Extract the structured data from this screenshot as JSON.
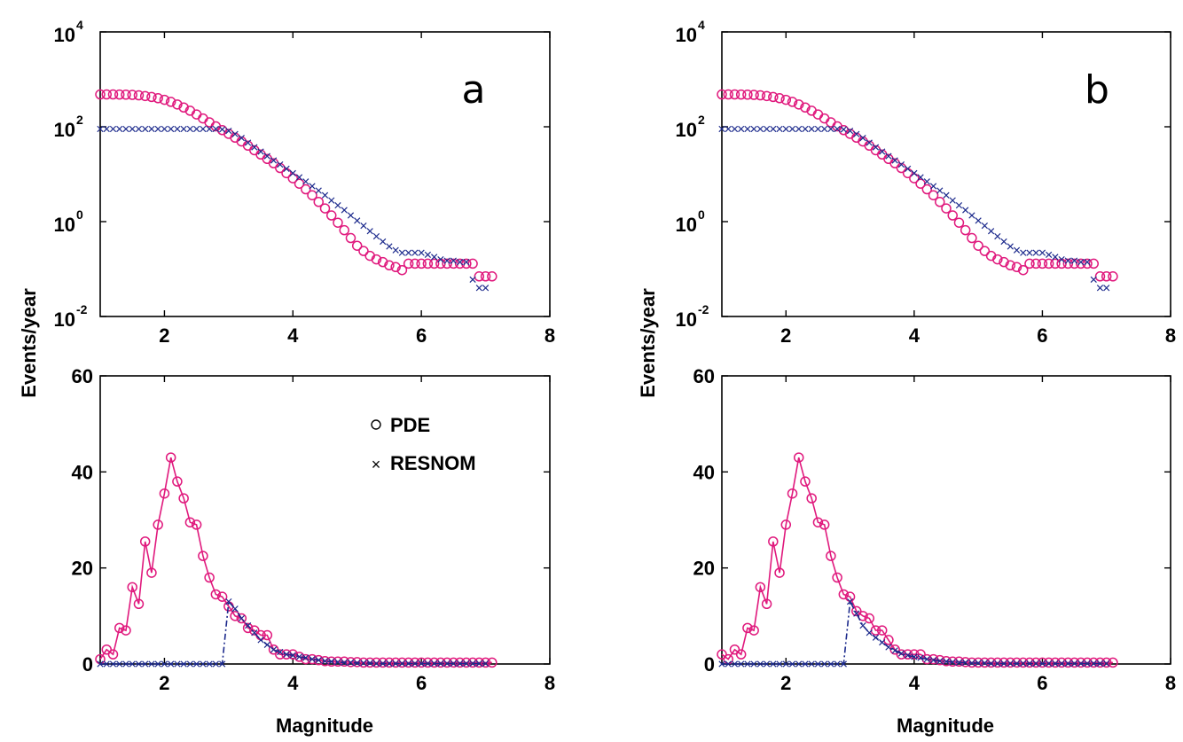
{
  "colors": {
    "pde": "#e0197d",
    "resnom": "#1c2a8c",
    "axis": "#000000"
  },
  "labels": {
    "ylabel": "Events/year",
    "xlabel": "Magnitude"
  },
  "legend": {
    "pde": {
      "symbol": "o",
      "label": "PDE"
    },
    "resnom": {
      "symbol": "×",
      "label": "RESNOM"
    }
  },
  "ticks": {
    "x": [
      "2",
      "4",
      "6",
      "8"
    ],
    "y_top": [
      {
        "base": "10",
        "exp": "-2"
      },
      {
        "base": "10",
        "exp": "0"
      },
      {
        "base": "10",
        "exp": "2"
      },
      {
        "base": "10",
        "exp": "4"
      }
    ],
    "y_bottom": [
      "0",
      "20",
      "40",
      "60"
    ]
  },
  "chart_data": [
    {
      "panel": "a",
      "type": "scatter",
      "scale": "log",
      "xlim": [
        1,
        8
      ],
      "ylim": [
        0.01,
        10000
      ],
      "xlabel": "",
      "ylabel": "Events/year",
      "series": [
        {
          "name": "PDE",
          "marker": "circle",
          "x": [
            1.0,
            1.1,
            1.2,
            1.3,
            1.4,
            1.5,
            1.6,
            1.7,
            1.8,
            1.9,
            2.0,
            2.1,
            2.2,
            2.3,
            2.4,
            2.5,
            2.6,
            2.7,
            2.8,
            2.9,
            3.0,
            3.1,
            3.2,
            3.3,
            3.4,
            3.5,
            3.6,
            3.7,
            3.8,
            3.9,
            4.0,
            4.1,
            4.2,
            4.3,
            4.4,
            4.5,
            4.6,
            4.7,
            4.8,
            4.9,
            5.0,
            5.1,
            5.2,
            5.3,
            5.4,
            5.5,
            5.6,
            5.7,
            5.8,
            5.9,
            6.0,
            6.1,
            6.2,
            6.3,
            6.4,
            6.5,
            6.6,
            6.7,
            6.8,
            6.9,
            7.0,
            7.1
          ],
          "y": [
            480,
            480,
            480,
            478,
            475,
            470,
            460,
            445,
            425,
            400,
            370,
            335,
            295,
            255,
            218,
            182,
            150,
            124,
            102,
            85,
            71,
            59,
            49,
            40,
            32,
            26,
            21,
            17,
            13.5,
            10.5,
            8.2,
            6.3,
            4.8,
            3.6,
            2.6,
            1.9,
            1.35,
            0.95,
            0.66,
            0.45,
            0.31,
            0.24,
            0.19,
            0.16,
            0.14,
            0.12,
            0.11,
            0.095,
            0.13,
            0.13,
            0.13,
            0.13,
            0.13,
            0.13,
            0.13,
            0.13,
            0.13,
            0.13,
            0.13,
            0.07,
            0.07,
            0.07
          ]
        },
        {
          "name": "RESNOM",
          "marker": "x",
          "x": [
            1.0,
            1.1,
            1.2,
            1.3,
            1.4,
            1.5,
            1.6,
            1.7,
            1.8,
            1.9,
            2.0,
            2.1,
            2.2,
            2.3,
            2.4,
            2.5,
            2.6,
            2.7,
            2.8,
            2.9,
            3.0,
            3.1,
            3.2,
            3.3,
            3.4,
            3.5,
            3.6,
            3.7,
            3.8,
            3.9,
            4.0,
            4.1,
            4.2,
            4.3,
            4.4,
            4.5,
            4.6,
            4.7,
            4.8,
            4.9,
            5.0,
            5.1,
            5.2,
            5.3,
            5.4,
            5.5,
            5.6,
            5.7,
            5.8,
            5.9,
            6.0,
            6.1,
            6.2,
            6.3,
            6.4,
            6.5,
            6.6,
            6.7,
            6.8,
            6.9,
            7.0
          ],
          "y": [
            90,
            90,
            90,
            90,
            90,
            90,
            90,
            90,
            90,
            90,
            90,
            90,
            90,
            90,
            90,
            90,
            90,
            90,
            90,
            88,
            82,
            70,
            58,
            46,
            37,
            30,
            24,
            19.5,
            16,
            13,
            10.5,
            8.6,
            7,
            5.6,
            4.5,
            3.6,
            2.8,
            2.2,
            1.75,
            1.35,
            1.05,
            0.82,
            0.63,
            0.49,
            0.38,
            0.3,
            0.25,
            0.22,
            0.22,
            0.22,
            0.22,
            0.2,
            0.18,
            0.16,
            0.15,
            0.15,
            0.14,
            0.14,
            0.06,
            0.04,
            0.04
          ]
        }
      ],
      "annotation": "a"
    },
    {
      "panel": "b",
      "type": "scatter",
      "scale": "log",
      "xlim": [
        1,
        8
      ],
      "ylim": [
        0.01,
        10000
      ],
      "xlabel": "",
      "ylabel": "Events/year",
      "series": [
        {
          "name": "PDE",
          "marker": "circle",
          "x": [
            1.0,
            1.1,
            1.2,
            1.3,
            1.4,
            1.5,
            1.6,
            1.7,
            1.8,
            1.9,
            2.0,
            2.1,
            2.2,
            2.3,
            2.4,
            2.5,
            2.6,
            2.7,
            2.8,
            2.9,
            3.0,
            3.1,
            3.2,
            3.3,
            3.4,
            3.5,
            3.6,
            3.7,
            3.8,
            3.9,
            4.0,
            4.1,
            4.2,
            4.3,
            4.4,
            4.5,
            4.6,
            4.7,
            4.8,
            4.9,
            5.0,
            5.1,
            5.2,
            5.3,
            5.4,
            5.5,
            5.6,
            5.7,
            5.8,
            5.9,
            6.0,
            6.1,
            6.2,
            6.3,
            6.4,
            6.5,
            6.6,
            6.7,
            6.8,
            6.9,
            7.0,
            7.1
          ],
          "y": [
            480,
            480,
            480,
            478,
            475,
            470,
            460,
            445,
            425,
            400,
            370,
            335,
            295,
            255,
            218,
            182,
            150,
            124,
            102,
            85,
            71,
            59,
            49,
            40,
            32,
            26,
            21,
            17,
            13.5,
            10.5,
            8.2,
            6.3,
            4.8,
            3.6,
            2.6,
            1.9,
            1.35,
            0.95,
            0.66,
            0.45,
            0.31,
            0.24,
            0.19,
            0.16,
            0.14,
            0.12,
            0.11,
            0.095,
            0.13,
            0.13,
            0.13,
            0.13,
            0.13,
            0.13,
            0.13,
            0.13,
            0.13,
            0.13,
            0.13,
            0.07,
            0.07,
            0.07
          ]
        },
        {
          "name": "RESNOM",
          "marker": "x",
          "x": [
            1.0,
            1.1,
            1.2,
            1.3,
            1.4,
            1.5,
            1.6,
            1.7,
            1.8,
            1.9,
            2.0,
            2.1,
            2.2,
            2.3,
            2.4,
            2.5,
            2.6,
            2.7,
            2.8,
            2.9,
            3.0,
            3.1,
            3.2,
            3.3,
            3.4,
            3.5,
            3.6,
            3.7,
            3.8,
            3.9,
            4.0,
            4.1,
            4.2,
            4.3,
            4.4,
            4.5,
            4.6,
            4.7,
            4.8,
            4.9,
            5.0,
            5.1,
            5.2,
            5.3,
            5.4,
            5.5,
            5.6,
            5.7,
            5.8,
            5.9,
            6.0,
            6.1,
            6.2,
            6.3,
            6.4,
            6.5,
            6.6,
            6.7,
            6.8,
            6.9,
            7.0
          ],
          "y": [
            90,
            90,
            90,
            90,
            90,
            90,
            90,
            90,
            90,
            90,
            90,
            90,
            90,
            90,
            90,
            90,
            90,
            90,
            90,
            88,
            82,
            70,
            58,
            46,
            37,
            30,
            24,
            19.5,
            16,
            13,
            10.5,
            8.6,
            7,
            5.6,
            4.5,
            3.6,
            2.8,
            2.2,
            1.75,
            1.35,
            1.05,
            0.82,
            0.63,
            0.49,
            0.38,
            0.3,
            0.25,
            0.22,
            0.22,
            0.22,
            0.22,
            0.2,
            0.18,
            0.16,
            0.15,
            0.15,
            0.14,
            0.14,
            0.06,
            0.04,
            0.04
          ]
        }
      ],
      "annotation": "b"
    },
    {
      "panel": "a-bottom",
      "type": "line",
      "scale": "linear",
      "xlim": [
        1,
        8
      ],
      "ylim": [
        0,
        60
      ],
      "xlabel": "Magnitude",
      "ylabel": "Events/year",
      "series": [
        {
          "name": "PDE",
          "marker": "circle",
          "x": [
            1.0,
            1.1,
            1.2,
            1.3,
            1.4,
            1.5,
            1.6,
            1.7,
            1.8,
            1.9,
            2.0,
            2.1,
            2.2,
            2.3,
            2.4,
            2.5,
            2.6,
            2.7,
            2.8,
            2.9,
            3.0,
            3.1,
            3.2,
            3.3,
            3.4,
            3.5,
            3.6,
            3.7,
            3.8,
            3.9,
            4.0,
            4.1,
            4.2,
            4.3,
            4.4,
            4.5,
            4.6,
            4.7,
            4.8,
            4.9,
            5.0,
            5.1,
            5.2,
            5.3,
            5.4,
            5.5,
            5.6,
            5.7,
            5.8,
            5.9,
            6.0,
            6.1,
            6.2,
            6.3,
            6.4,
            6.5,
            6.6,
            6.7,
            6.8,
            6.9,
            7.0,
            7.1
          ],
          "y": [
            1,
            3,
            2,
            7.5,
            7,
            16,
            12.5,
            25.5,
            19,
            29,
            35.5,
            43,
            38,
            34.5,
            29.5,
            29,
            22.5,
            18,
            14.5,
            14,
            12,
            10,
            9.5,
            7.5,
            7,
            6,
            6,
            3,
            2,
            2,
            2,
            1.5,
            1,
            1,
            0.8,
            0.6,
            0.5,
            0.5,
            0.5,
            0.4,
            0.4,
            0.3,
            0.3,
            0.3,
            0.3,
            0.3,
            0.3,
            0.3,
            0.3,
            0.3,
            0.3,
            0.3,
            0.3,
            0.3,
            0.3,
            0.3,
            0.3,
            0.3,
            0.3,
            0.3,
            0.3,
            0.3
          ]
        },
        {
          "name": "RESNOM",
          "marker": "x",
          "x": [
            1.0,
            1.1,
            1.2,
            1.3,
            1.4,
            1.5,
            1.6,
            1.7,
            1.8,
            1.9,
            2.0,
            2.1,
            2.2,
            2.3,
            2.4,
            2.5,
            2.6,
            2.7,
            2.8,
            2.9,
            3.0,
            3.1,
            3.2,
            3.3,
            3.4,
            3.5,
            3.6,
            3.7,
            3.8,
            3.9,
            4.0,
            4.1,
            4.2,
            4.3,
            4.4,
            4.5,
            4.6,
            4.7,
            4.8,
            4.9,
            5.0,
            5.1,
            5.2,
            5.3,
            5.4,
            5.5,
            5.6,
            5.7,
            5.8,
            5.9,
            6.0,
            6.1,
            6.2,
            6.3,
            6.4,
            6.5,
            6.6,
            6.7,
            6.8,
            6.9,
            7.0
          ],
          "y": [
            0,
            0,
            0,
            0,
            0,
            0,
            0,
            0,
            0,
            0,
            0,
            0,
            0,
            0,
            0,
            0,
            0,
            0,
            0,
            0,
            13,
            11.5,
            9.5,
            8,
            6.5,
            5,
            4,
            3,
            2.5,
            2,
            1.8,
            1.5,
            1.3,
            1,
            0.8,
            0.6,
            0.5,
            0.4,
            0.3,
            0.3,
            0.2,
            0.2,
            0.2,
            0.1,
            0.1,
            0.1,
            0.1,
            0.1,
            0.1,
            0.1,
            0.1,
            0.1,
            0.1,
            0.1,
            0.1,
            0.1,
            0.1,
            0.1,
            0.1,
            0.1,
            0.1
          ]
        }
      ]
    },
    {
      "panel": "b-bottom",
      "type": "line",
      "scale": "linear",
      "xlim": [
        1,
        8
      ],
      "ylim": [
        0,
        60
      ],
      "xlabel": "Magnitude",
      "ylabel": "Events/year",
      "series": [
        {
          "name": "PDE",
          "marker": "circle",
          "x": [
            1.0,
            1.1,
            1.2,
            1.3,
            1.4,
            1.5,
            1.6,
            1.7,
            1.8,
            1.9,
            2.0,
            2.1,
            2.2,
            2.3,
            2.4,
            2.5,
            2.6,
            2.7,
            2.8,
            2.9,
            3.0,
            3.1,
            3.2,
            3.3,
            3.4,
            3.5,
            3.6,
            3.7,
            3.8,
            3.9,
            4.0,
            4.1,
            4.2,
            4.3,
            4.4,
            4.5,
            4.6,
            4.7,
            4.8,
            4.9,
            5.0,
            5.1,
            5.2,
            5.3,
            5.4,
            5.5,
            5.6,
            5.7,
            5.8,
            5.9,
            6.0,
            6.1,
            6.2,
            6.3,
            6.4,
            6.5,
            6.6,
            6.7,
            6.8,
            6.9,
            7.0,
            7.1
          ],
          "y": [
            2,
            1,
            3,
            2,
            7.5,
            7,
            16,
            12.5,
            25.5,
            19,
            29,
            35.5,
            43,
            38,
            34.5,
            29.5,
            29,
            22.5,
            18,
            14.5,
            14,
            11,
            10,
            9.5,
            7,
            7,
            5,
            3,
            2,
            2,
            2,
            2,
            1,
            1,
            0.8,
            0.6,
            0.5,
            0.5,
            0.4,
            0.3,
            0.3,
            0.3,
            0.3,
            0.3,
            0.3,
            0.3,
            0.3,
            0.3,
            0.3,
            0.3,
            0.3,
            0.3,
            0.3,
            0.3,
            0.3,
            0.3,
            0.3,
            0.3,
            0.3,
            0.3,
            0.3,
            0.3
          ]
        },
        {
          "name": "RESNOM",
          "marker": "x",
          "x": [
            1.0,
            1.1,
            1.2,
            1.3,
            1.4,
            1.5,
            1.6,
            1.7,
            1.8,
            1.9,
            2.0,
            2.1,
            2.2,
            2.3,
            2.4,
            2.5,
            2.6,
            2.7,
            2.8,
            2.9,
            3.0,
            3.1,
            3.2,
            3.3,
            3.4,
            3.5,
            3.6,
            3.7,
            3.8,
            3.9,
            4.0,
            4.1,
            4.2,
            4.3,
            4.4,
            4.5,
            4.6,
            4.7,
            4.8,
            4.9,
            5.0,
            5.1,
            5.2,
            5.3,
            5.4,
            5.5,
            5.6,
            5.7,
            5.8,
            5.9,
            6.0,
            6.1,
            6.2,
            6.3,
            6.4,
            6.5,
            6.6,
            6.7,
            6.8,
            6.9,
            7.0
          ],
          "y": [
            0,
            0,
            0,
            0,
            0,
            0,
            0,
            0,
            0,
            0,
            0,
            0,
            0,
            0,
            0,
            0,
            0,
            0,
            0,
            0,
            13,
            10.5,
            8,
            6.5,
            5.5,
            4.5,
            3.5,
            2.8,
            2.2,
            1.8,
            1.5,
            1.3,
            1,
            0.8,
            0.6,
            0.5,
            0.4,
            0.3,
            0.3,
            0.2,
            0.2,
            0.2,
            0.1,
            0.1,
            0.1,
            0.1,
            0.1,
            0.1,
            0.1,
            0.1,
            0.1,
            0.1,
            0.1,
            0.1,
            0.1,
            0.1,
            0.1,
            0.1,
            0.1,
            0.1,
            0.1
          ]
        }
      ]
    }
  ]
}
